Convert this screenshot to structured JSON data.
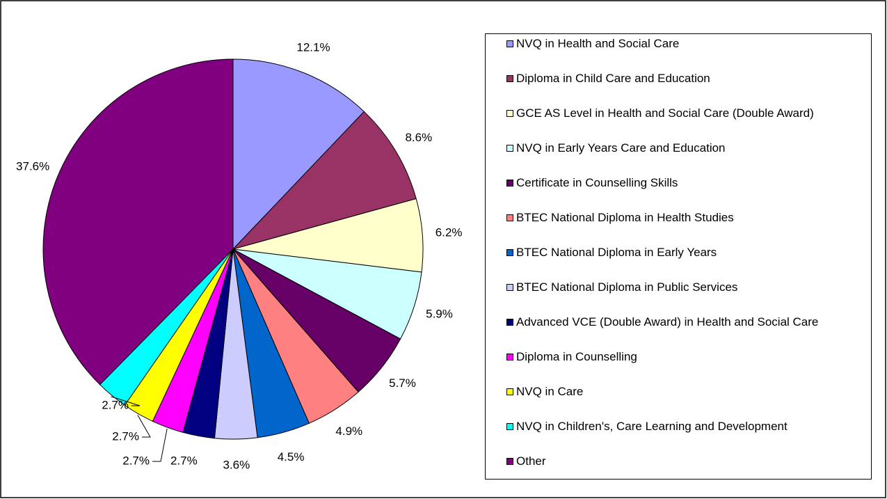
{
  "chart_data": {
    "type": "pie",
    "categories": [
      "NVQ in Health and Social Care",
      "Diploma in Child Care and Education",
      "GCE AS Level in Health and Social Care (Double Award)",
      "NVQ in Early Years Care and Education",
      "Certificate in Counselling Skills",
      "BTEC National Diploma in Health Studies",
      "BTEC National Diploma in Early Years",
      "BTEC National Diploma in Public Services",
      "Advanced VCE (Double Award) in Health and Social Care",
      "Diploma in Counselling",
      "NVQ in Care",
      "NVQ in Children's, Care Learning and Development",
      "Other"
    ],
    "values": [
      12.1,
      8.6,
      6.2,
      5.9,
      5.7,
      4.9,
      4.5,
      3.6,
      2.7,
      2.7,
      2.7,
      2.7,
      37.6
    ],
    "value_labels": [
      "12.1%",
      "8.6%",
      "6.2%",
      "5.9%",
      "5.7%",
      "4.9%",
      "4.5%",
      "3.6%",
      "2.7%",
      "2.7%",
      "2.7%",
      "2.7%",
      "37.6%"
    ],
    "colors": [
      "#9999ff",
      "#993366",
      "#ffffcc",
      "#ccffff",
      "#660066",
      "#ff8080",
      "#0066cc",
      "#ccccff",
      "#000080",
      "#ff00ff",
      "#ffff00",
      "#00ffff",
      "#800080"
    ],
    "legend": "right"
  }
}
